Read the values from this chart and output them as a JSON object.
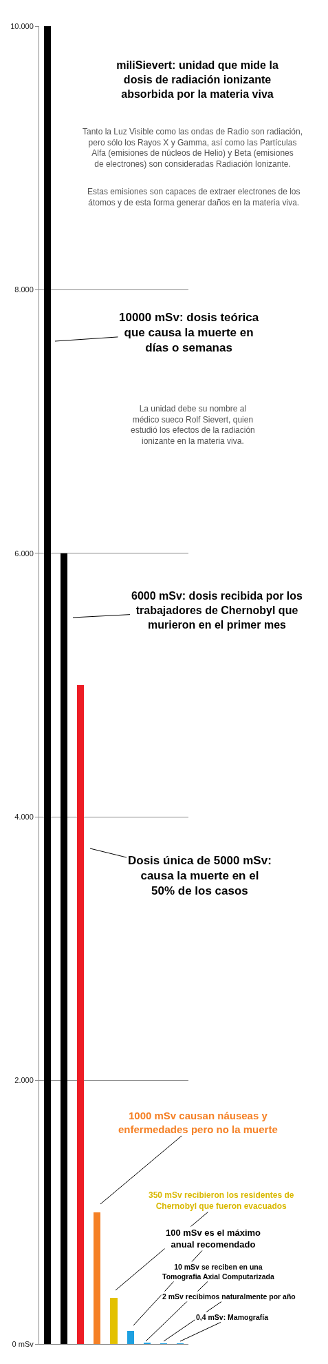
{
  "chart_data": {
    "type": "bar",
    "title": "miliSievert: unidad que mide la\ndosis de radiación ionizante\nabsorbida por la materia viva",
    "categories": [
      null,
      null,
      null,
      null,
      null,
      null,
      null,
      null,
      null
    ],
    "values": [
      10000,
      6000,
      5000,
      1000,
      350,
      100,
      10,
      2,
      0.4
    ],
    "colors": [
      "#000000",
      "#000000",
      "#ed1c24",
      "#f58025",
      "#e3c100",
      "#1ea0e0",
      "#1ea0e0",
      "#1ea0e0",
      "#1ea0e0"
    ],
    "ylim": [
      0,
      10000
    ],
    "yticks": [
      {
        "value": 0,
        "label": "0 mSv"
      },
      {
        "value": 2000,
        "label": "2.000"
      },
      {
        "value": 4000,
        "label": "4.000"
      },
      {
        "value": 6000,
        "label": "6.000"
      },
      {
        "value": 8000,
        "label": "8.000"
      },
      {
        "value": 10000,
        "label": "10.000"
      }
    ],
    "grid": "y",
    "tick_labels": "y",
    "annotations": [
      "Tanto la Luz Visible como las ondas de Radio son radiación,\npero sólo los Rayos X y Gamma, así como las Partículas\nAlfa (emisiones de núcleos de Helio) y Beta (emisiones\nde electrones) son consideradas Radiación Ionizante.",
      "Estas emisiones son capaces de extraer electrones de los\nátomos y de esta forma generar daños en la materia viva.",
      "10000 mSv: dosis teórica\nque causa la muerte en\ndías o semanas",
      "La unidad debe su nombre al\nmédico sueco Rolf Sievert, quien\nestudió los efectos de la radiación\nionizante en la materia viva.",
      "6000 mSv: dosis recibida por los\ntrabajadores de Chernobyl que\nmurieron en el primer mes",
      "Dosis única de 5000 mSv:\ncausa la muerte en el\n50% de los casos",
      "1000 mSv causan náuseas y\nenfermedades pero no la muerte",
      "350 mSv recibieron los residentes de\nChernobyl que fueron evacuados",
      "100 mSv es el máximo\nanual recomendado",
      "10 mSv se reciben en una\nTomografia Axial Computarizada",
      "2 mSv recibimos naturalmente por año",
      "0,4 mSv: Mamografía"
    ]
  }
}
